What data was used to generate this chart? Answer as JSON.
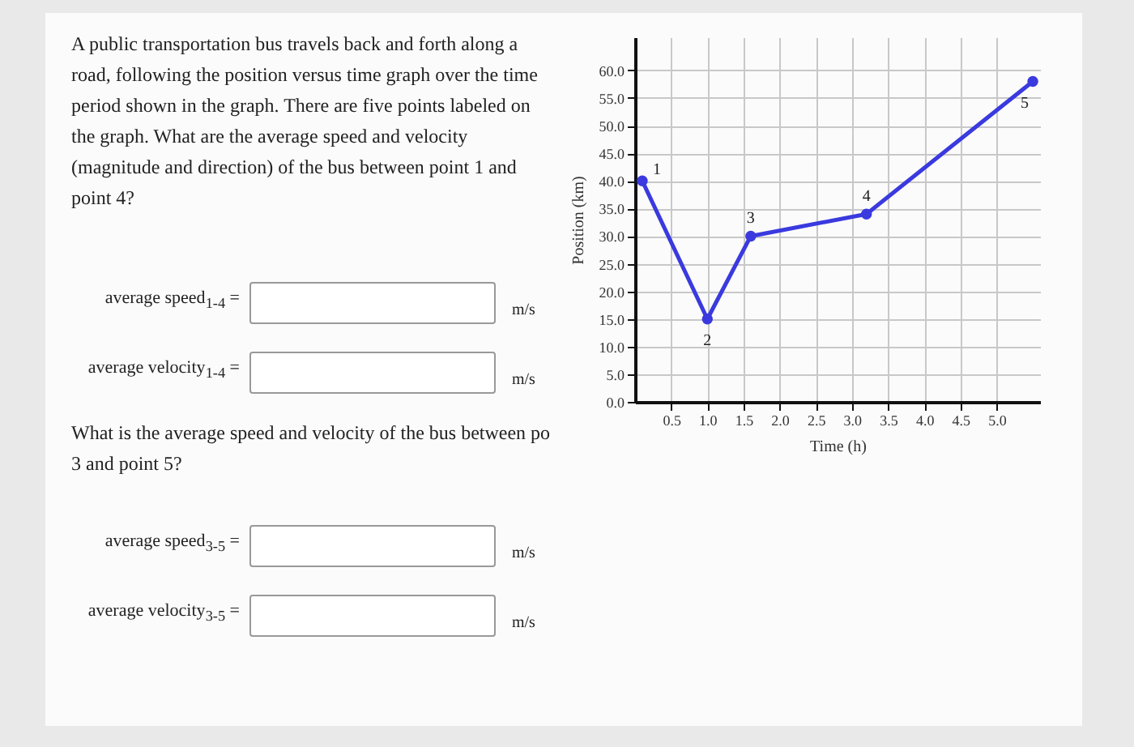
{
  "chart_data": {
    "type": "line",
    "xlabel": "Time (h)",
    "ylabel": "Position (km)",
    "x": [
      0.1,
      1.0,
      1.6,
      3.2,
      5.5
    ],
    "series": [
      {
        "color": "#3a3adf",
        "values": [
          40,
          15,
          30,
          34,
          58
        ]
      }
    ],
    "marker": "circle",
    "xlim": [
      0,
      5.6
    ],
    "ylim": [
      0,
      66
    ],
    "xticks": [
      {
        "value": 0.5,
        "label": "0.5"
      },
      {
        "value": 1,
        "label": "1.0"
      },
      {
        "value": 1.5,
        "label": "1.5"
      },
      {
        "value": 2,
        "label": "2.0"
      },
      {
        "value": 2.5,
        "label": "2.5"
      },
      {
        "value": 3,
        "label": "3.0"
      },
      {
        "value": 3.5,
        "label": "3.5"
      },
      {
        "value": 4,
        "label": "4.0"
      },
      {
        "value": 4.5,
        "label": "4.5"
      },
      {
        "value": 5,
        "label": "5.0"
      }
    ],
    "yticks": [
      {
        "value": 0,
        "label": "0.0"
      },
      {
        "value": 5,
        "label": "5.0"
      },
      {
        "value": 10,
        "label": "10.0"
      },
      {
        "value": 15,
        "label": "15.0"
      },
      {
        "value": 20,
        "label": "20.0"
      },
      {
        "value": 25,
        "label": "25.0"
      },
      {
        "value": 30,
        "label": "30.0"
      },
      {
        "value": 35,
        "label": "35.0"
      },
      {
        "value": 40,
        "label": "40.0"
      },
      {
        "value": 45,
        "label": "45.0"
      },
      {
        "value": 50,
        "label": "50.0"
      },
      {
        "value": 55,
        "label": "55.0"
      },
      {
        "value": 60,
        "label": "60.0"
      }
    ],
    "grid": true,
    "annotations": [
      "A public transportation bus travels back and forth along a road, following the position versus time graph over the time period shown in the graph. There are five points labeled on the graph. What are the average speed and velocity (magnitude and direction) of the bus between point 1 and point 4?",
      "average speed$_{1-4}$ =",
      "m/s",
      "average velocity$_{1-4}$ =",
      "m/s",
      "What is the average speed and velocity of the bus between po 3 and point 5?",
      "average speed$_{3-5}$ =",
      "m/s",
      "average velocity$_{3-5}$ =",
      "m/s",
      {
        "text": "1",
        "x": 0.1,
        "y": 40
      },
      {
        "text": "2",
        "x": 1.0,
        "y": 15
      },
      {
        "text": "3",
        "x": 1.6,
        "y": 30
      },
      {
        "text": "4",
        "x": 3.2,
        "y": 34
      },
      {
        "text": "5",
        "x": 5.5,
        "y": 58
      }
    ]
  }
}
